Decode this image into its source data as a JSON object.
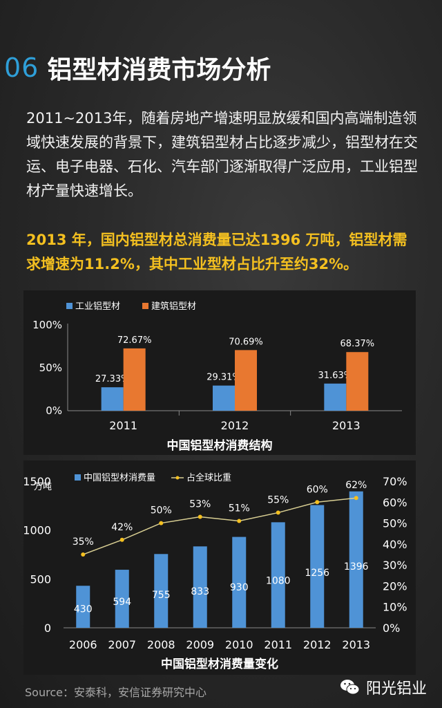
{
  "header": {
    "number": "06",
    "title": "铝型材消费市场分析"
  },
  "paragraph": "2011~2013年，随着房地产增速明显放缓和国内高端制造领域快速发展的背景下，建筑铝型材占比逐步减少，铝型材在交运、电子电器、石化、汽车部门逐渐取得广泛应用，工业铝型材产量快速增长。",
  "highlight": "2013 年，国内铝型材总消费量已达1396 万吨，铝型材需求增速为11.2%，其中工业型材占比升至约32%。",
  "colors": {
    "blue": "#4f93d6",
    "orange": "#e87830",
    "line": "#d9cf93",
    "accent": "#2f9fd8",
    "yellow": "#f4c020"
  },
  "chart_data": [
    {
      "type": "bar",
      "title": "中国铝型材消费结构",
      "categories": [
        "2011",
        "2012",
        "2013"
      ],
      "series": [
        {
          "name": "工业铝型材",
          "values": [
            27.33,
            29.31,
            31.63
          ],
          "labels": [
            "27.33%",
            "29.31%",
            "31.63%"
          ]
        },
        {
          "name": "建筑铝型材",
          "values": [
            72.67,
            70.69,
            68.37
          ],
          "labels": [
            "72.67%",
            "70.69%",
            "68.37%"
          ]
        }
      ],
      "ylim": [
        0,
        100
      ],
      "yticks": [
        "0%",
        "50%",
        "100%"
      ],
      "legend": "top-left"
    },
    {
      "type": "bar",
      "title": "中国铝型材消费量变化",
      "categories": [
        "2006",
        "2007",
        "2008",
        "2009",
        "2010",
        "2011",
        "2012",
        "2013"
      ],
      "series": [
        {
          "name": "中国铝型材消费量",
          "kind": "bar",
          "values": [
            430,
            594,
            755,
            833,
            930,
            1080,
            1256,
            1396
          ],
          "labels": [
            "430",
            "594",
            "755",
            "833",
            "930",
            "1080",
            "1256",
            "1396"
          ]
        },
        {
          "name": "占全球比重",
          "kind": "line",
          "values": [
            35,
            42,
            50,
            53,
            51,
            55,
            60,
            62
          ],
          "labels": [
            "35%",
            "42%",
            "50%",
            "53%",
            "51%",
            "55%",
            "60%",
            "62%"
          ]
        }
      ],
      "ylabel": "万吨",
      "ylim": [
        0,
        1500
      ],
      "yticks": [
        "0",
        "500",
        "1000",
        "1500"
      ],
      "y2lim": [
        0,
        70
      ],
      "y2ticks": [
        "0%",
        "10%",
        "20%",
        "30%",
        "40%",
        "50%",
        "60%",
        "70%"
      ],
      "legend": "top"
    }
  ],
  "footer": {
    "source": "Source：安泰科，安信证券研究中心",
    "brand": "阳光铝业"
  }
}
